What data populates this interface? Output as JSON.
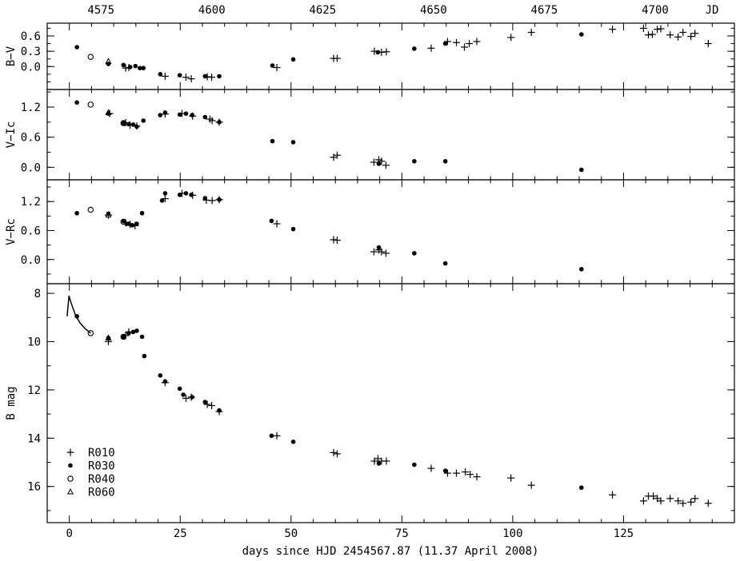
{
  "chart_data": {
    "type": "scatter",
    "xlabel": "days since HJD 2454567.87 (11.37 April 2008)",
    "top_axis_label": "JD",
    "xlim": [
      -5,
      150
    ],
    "x_ticks": [
      0,
      25,
      50,
      75,
      100,
      125
    ],
    "top_ticks": [
      {
        "x": 7.13,
        "label": "4575"
      },
      {
        "x": 32.13,
        "label": "4600"
      },
      {
        "x": 57.13,
        "label": "4625"
      },
      {
        "x": 82.13,
        "label": "4650"
      },
      {
        "x": 107.13,
        "label": "4675"
      },
      {
        "x": 132.13,
        "label": "4700"
      }
    ],
    "legend": {
      "placement": "bottom-left",
      "entries": [
        {
          "marker": "plus",
          "label": "R010"
        },
        {
          "marker": "dot",
          "label": "R030"
        },
        {
          "marker": "circle",
          "label": "R040"
        },
        {
          "marker": "triangle",
          "label": "R060"
        }
      ]
    },
    "panels": [
      {
        "ylabel": "B−V",
        "ylim": [
          -0.45,
          0.85
        ],
        "y_ticks": [
          0.6,
          0.3,
          0.0
        ],
        "y_tick_labels": [
          "0.6",
          "0.3",
          "0.0"
        ],
        "series": [
          {
            "marker": "dot",
            "x": [
              1.7,
              8.8,
              12.2,
              13.7,
              14.9,
              15.9,
              16.7,
              20.5,
              24.9,
              30.6,
              33.8,
              45.8,
              50.5,
              69.6,
              77.8,
              84.8,
              115.5
            ],
            "y": [
              0.38,
              0.05,
              0.03,
              -0.01,
              0.01,
              -0.03,
              -0.03,
              -0.15,
              -0.17,
              -0.19,
              -0.19,
              0.02,
              0.14,
              0.28,
              0.35,
              0.45,
              0.63
            ]
          },
          {
            "marker": "circle",
            "x": [
              4.8
            ],
            "y": [
              0.19
            ]
          },
          {
            "marker": "triangle",
            "x": [
              8.8
            ],
            "y": [
              0.1
            ]
          },
          {
            "marker": "plus",
            "x": [
              12.7,
              13.4,
              21.6,
              26.3,
              27.5,
              31.1,
              32.1,
              46.8,
              59.6,
              60.4,
              68.8,
              70.4,
              71.5,
              81.6,
              85.3,
              87.3,
              89.1,
              90.2,
              91.9,
              99.6,
              104.2,
              122.5,
              129.5,
              130.6,
              131.5,
              132.6,
              133.4,
              135.5,
              137.3,
              138.4,
              140.2,
              141.1,
              144.1
            ],
            "y": [
              -0.03,
              -0.02,
              -0.19,
              -0.21,
              -0.24,
              -0.2,
              -0.21,
              -0.02,
              0.16,
              0.16,
              0.3,
              0.28,
              0.29,
              0.36,
              0.49,
              0.47,
              0.38,
              0.45,
              0.49,
              0.57,
              0.67,
              0.73,
              0.75,
              0.62,
              0.63,
              0.73,
              0.74,
              0.62,
              0.58,
              0.67,
              0.59,
              0.65,
              0.45
            ]
          }
        ]
      },
      {
        "ylabel": "V−Ic",
        "ylim": [
          -0.25,
          1.55
        ],
        "y_ticks": [
          1.2,
          0.6,
          0.0
        ],
        "y_tick_labels": [
          "1.2",
          "0.6",
          "0.0"
        ],
        "series": [
          {
            "marker": "dot",
            "x": [
              1.7,
              8.8,
              12.2,
              13.4,
              14.4,
              15.2,
              16.7,
              20.5,
              21.6,
              24.9,
              26.3,
              27.7,
              30.6,
              33.8,
              45.8,
              50.5,
              69.8,
              77.8,
              84.8,
              115.5
            ],
            "y": [
              1.29,
              1.07,
              0.88,
              0.86,
              0.85,
              0.81,
              0.93,
              1.04,
              1.09,
              1.05,
              1.07,
              1.04,
              1.0,
              0.9,
              0.52,
              0.5,
              0.07,
              0.12,
              0.12,
              -0.05
            ]
          },
          {
            "marker": "circle",
            "x": [
              4.8,
              12.2
            ],
            "y": [
              1.25,
              0.88
            ]
          },
          {
            "marker": "triangle",
            "x": [
              8.8
            ],
            "y": [
              1.09
            ]
          },
          {
            "marker": "plus",
            "x": [
              9.1,
              12.7,
              13.7,
              15.2,
              21.6,
              25.4,
              27.8,
              31.7,
              32.2,
              33.8,
              59.6,
              60.4,
              68.7,
              69.8,
              70.4,
              71.4
            ],
            "y": [
              1.07,
              0.89,
              0.84,
              0.82,
              1.06,
              1.07,
              1.02,
              0.96,
              0.93,
              0.9,
              0.2,
              0.24,
              0.1,
              0.15,
              0.12,
              0.04
            ]
          }
        ]
      },
      {
        "ylabel": "V−Rc",
        "ylim": [
          -0.5,
          1.65
        ],
        "y_ticks": [
          1.2,
          0.6,
          0.0
        ],
        "y_tick_labels": [
          "1.2",
          "0.6",
          "0.0"
        ],
        "series": [
          {
            "marker": "dot",
            "x": [
              1.7,
              8.8,
              12.2,
              12.9,
              13.4,
              14.2,
              15.2,
              16.4,
              20.9,
              21.6,
              24.9,
              26.3,
              27.5,
              30.6,
              33.8,
              45.6,
              50.5,
              69.8,
              77.8,
              84.8,
              115.5
            ],
            "y": [
              0.96,
              0.95,
              0.8,
              0.74,
              0.74,
              0.71,
              0.74,
              0.96,
              1.22,
              1.37,
              1.34,
              1.37,
              1.34,
              1.27,
              1.24,
              0.8,
              0.63,
              0.25,
              0.13,
              -0.08,
              -0.2
            ]
          },
          {
            "marker": "circle",
            "x": [
              4.8,
              12.2
            ],
            "y": [
              1.03,
              0.78
            ]
          },
          {
            "marker": "triangle",
            "x": [
              8.8
            ],
            "y": [
              0.92
            ]
          },
          {
            "marker": "plus",
            "x": [
              8.8,
              12.7,
              13.7,
              14.8,
              21.6,
              25.4,
              27.8,
              30.9,
              32.2,
              33.8,
              46.8,
              59.6,
              60.4,
              68.7,
              69.8,
              70.4,
              71.4
            ],
            "y": [
              0.92,
              0.76,
              0.73,
              0.7,
              1.26,
              1.37,
              1.33,
              1.23,
              1.22,
              1.24,
              0.74,
              0.41,
              0.4,
              0.16,
              0.2,
              0.16,
              0.13
            ]
          }
        ]
      },
      {
        "ylabel": "B mag",
        "ylim": [
          17.5,
          7.6
        ],
        "y_ticks": [
          8,
          10,
          12,
          14,
          16
        ],
        "y_tick_labels": [
          "8",
          "10",
          "12",
          "14",
          "16"
        ],
        "curve": {
          "x": [
            -0.5,
            -0.1,
            0.3,
            0.8,
            1.5,
            2.5,
            3.5,
            4.8
          ],
          "y": [
            8.95,
            8.1,
            8.35,
            8.6,
            8.95,
            9.25,
            9.45,
            9.65
          ]
        },
        "series": [
          {
            "marker": "dot",
            "x": [
              1.7,
              8.8,
              12.2,
              13.4,
              14.4,
              15.2,
              16.4,
              16.9,
              20.5,
              21.6,
              24.9,
              25.7,
              27.7,
              30.6,
              33.8,
              45.6,
              50.5,
              69.8,
              77.8,
              84.8,
              115.5
            ],
            "y": [
              8.95,
              9.85,
              9.8,
              9.65,
              9.6,
              9.55,
              9.8,
              10.6,
              11.4,
              11.65,
              11.95,
              12.2,
              12.3,
              12.5,
              12.85,
              13.9,
              14.15,
              15.05,
              15.1,
              15.35,
              16.05
            ]
          },
          {
            "marker": "circle",
            "x": [
              4.8,
              12.2
            ],
            "y": [
              9.65,
              9.8
            ]
          },
          {
            "marker": "triangle",
            "x": [
              8.8
            ],
            "y": [
              9.85
            ]
          },
          {
            "marker": "plus",
            "x": [
              8.8,
              12.7,
              13.4,
              21.6,
              26.3,
              27.5,
              31.1,
              32.1,
              33.8,
              46.8,
              59.6,
              60.4,
              68.8,
              69.6,
              70.4,
              71.5,
              81.6,
              85.3,
              87.3,
              89.3,
              90.4,
              91.9,
              99.6,
              104.2,
              122.5,
              129.5,
              130.6,
              131.7,
              132.6,
              133.4,
              135.5,
              137.3,
              138.4,
              140.2,
              141.1,
              144.1
            ],
            "y": [
              10.0,
              9.75,
              9.6,
              11.7,
              12.35,
              12.3,
              12.6,
              12.65,
              12.9,
              13.9,
              14.6,
              14.65,
              14.95,
              14.85,
              14.95,
              14.95,
              15.25,
              15.45,
              15.45,
              15.4,
              15.5,
              15.6,
              15.65,
              15.95,
              16.35,
              16.6,
              16.4,
              16.4,
              16.5,
              16.6,
              16.5,
              16.6,
              16.7,
              16.65,
              16.5,
              16.7
            ]
          }
        ]
      }
    ]
  }
}
